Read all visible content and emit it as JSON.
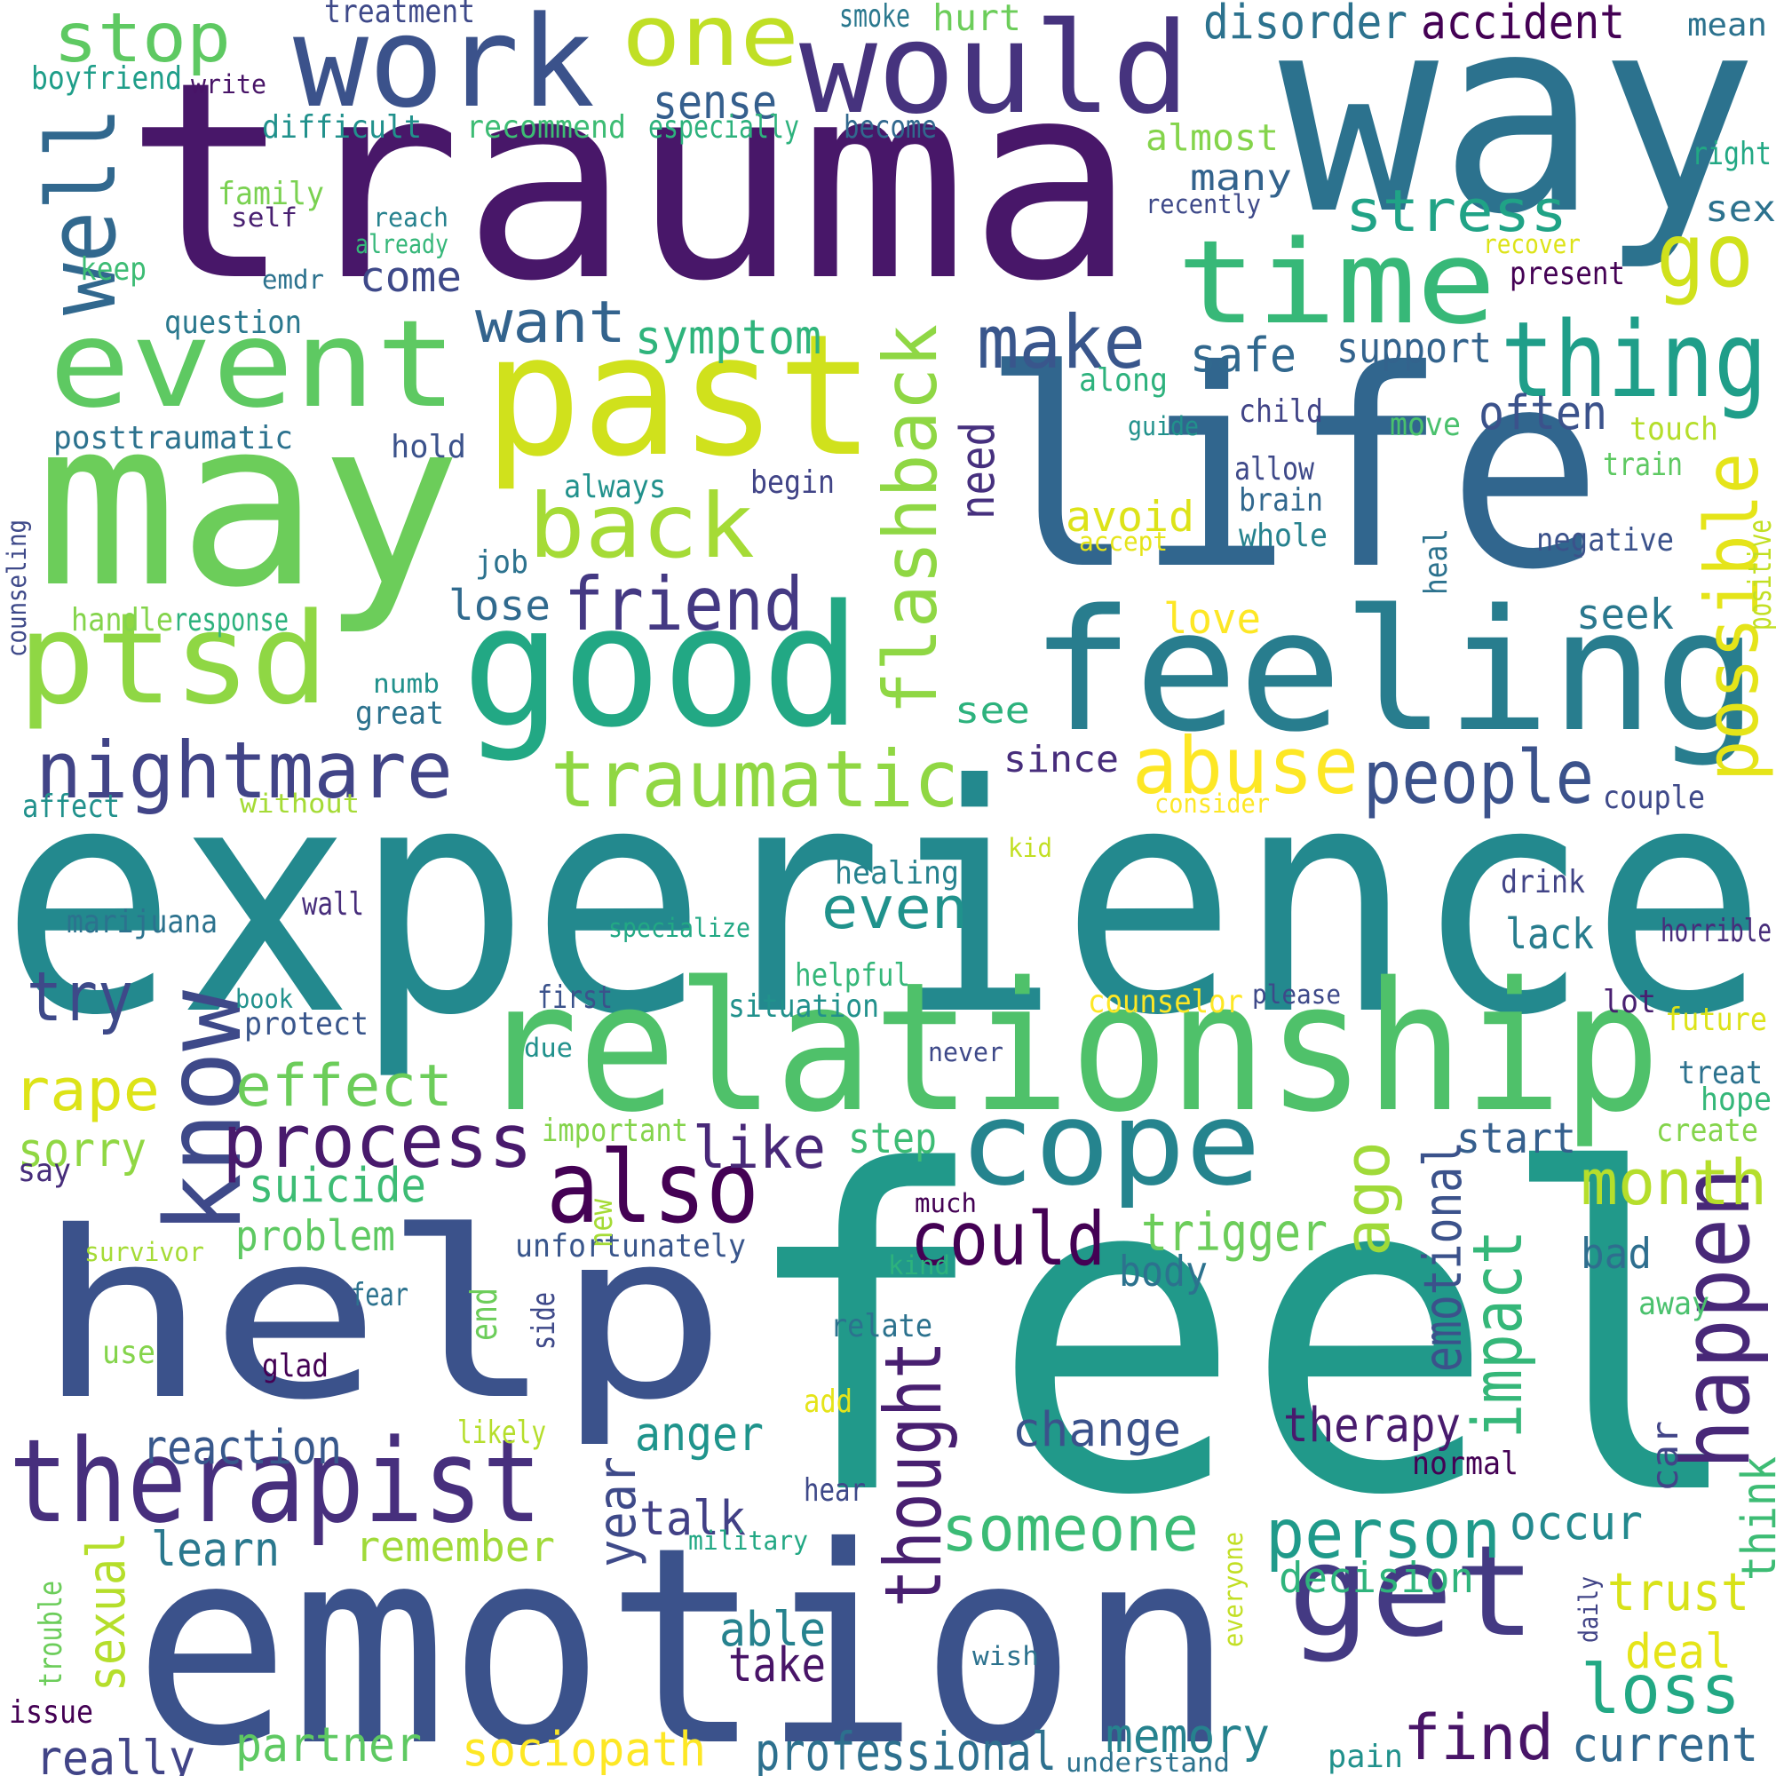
{
  "palette": [
    "#440154",
    "#3b528b",
    "#21918c",
    "#5ec962",
    "#fde725"
  ],
  "words": [
    {
      "text": "feel",
      "color": "#21998a"
    },
    {
      "text": "experience",
      "color": "#23898e"
    },
    {
      "text": "trauma",
      "color": "#481769"
    },
    {
      "text": "life",
      "color": "#31668e"
    },
    {
      "text": "way",
      "color": "#2c728e"
    },
    {
      "text": "emotion",
      "color": "#3b528b"
    },
    {
      "text": "help",
      "color": "#3b528b"
    },
    {
      "text": "may",
      "color": "#6ccd5a"
    },
    {
      "text": "relationship",
      "color": "#4fc16a"
    },
    {
      "text": "feeling",
      "color": "#287d8e"
    },
    {
      "text": "good",
      "color": "#22a884"
    },
    {
      "text": "past",
      "color": "#d0e11c"
    },
    {
      "text": "work",
      "color": "#3b528b"
    },
    {
      "text": "would",
      "color": "#46337e"
    },
    {
      "text": "time",
      "color": "#37b878"
    },
    {
      "text": "event",
      "color": "#5ec962"
    },
    {
      "text": "ptsd",
      "color": "#8fd744"
    },
    {
      "text": "therapist",
      "color": "#472f7d"
    },
    {
      "text": "get",
      "color": "#443a83"
    },
    {
      "text": "cope",
      "color": "#25848e"
    },
    {
      "text": "thing",
      "color": "#1f9e89"
    },
    {
      "text": "also",
      "color": "#440154"
    },
    {
      "text": "know",
      "color": "#3e4989"
    },
    {
      "text": "happen",
      "color": "#482878"
    },
    {
      "text": "one",
      "color": "#c0df25"
    },
    {
      "text": "nightmare",
      "color": "#414487"
    },
    {
      "text": "traumatic",
      "color": "#90d743"
    },
    {
      "text": "well",
      "color": "#31688e"
    },
    {
      "text": "back",
      "color": "#a5db36"
    },
    {
      "text": "abuse",
      "color": "#fde725"
    },
    {
      "text": "people",
      "color": "#3b528b"
    },
    {
      "text": "process",
      "color": "#481a6c"
    },
    {
      "text": "friend",
      "color": "#443983"
    },
    {
      "text": "make",
      "color": "#39568c"
    },
    {
      "text": "go",
      "color": "#d0e11c"
    },
    {
      "text": "flashback",
      "color": "#8fd744"
    },
    {
      "text": "could",
      "color": "#440154"
    },
    {
      "text": "thought",
      "color": "#481f70"
    },
    {
      "text": "find",
      "color": "#481467"
    },
    {
      "text": "loss",
      "color": "#22a884"
    },
    {
      "text": "person",
      "color": "#1f9a8a"
    },
    {
      "text": "someone",
      "color": "#3bbb75"
    },
    {
      "text": "month",
      "color": "#b5de2b"
    },
    {
      "text": "possible",
      "color": "#e5e419"
    },
    {
      "text": "stop",
      "color": "#5ec962"
    },
    {
      "text": "stress",
      "color": "#20a386"
    },
    {
      "text": "want",
      "color": "#33638d"
    },
    {
      "text": "effect",
      "color": "#6ccd5a"
    },
    {
      "text": "rape",
      "color": "#dde318"
    },
    {
      "text": "impact",
      "color": "#35b779"
    },
    {
      "text": "professional",
      "color": "#2d708e"
    },
    {
      "text": "try",
      "color": "#3e4989"
    },
    {
      "text": "even",
      "color": "#20928c"
    },
    {
      "text": "like",
      "color": "#482878"
    },
    {
      "text": "ago",
      "color": "#a0da39"
    },
    {
      "text": "symptom",
      "color": "#2fb47c"
    },
    {
      "text": "trigger",
      "color": "#6ccd5a"
    },
    {
      "text": "disorder",
      "color": "#2c728e"
    },
    {
      "text": "accident",
      "color": "#440154"
    },
    {
      "text": "sense",
      "color": "#355f8d"
    },
    {
      "text": "suicide",
      "color": "#3dbc74"
    },
    {
      "text": "emotional",
      "color": "#3b528b"
    },
    {
      "text": "trust",
      "color": "#d8e219"
    },
    {
      "text": "therapy",
      "color": "#481b6d"
    },
    {
      "text": "change",
      "color": "#3b528b"
    },
    {
      "text": "memory",
      "color": "#26828e"
    },
    {
      "text": "current",
      "color": "#31688e"
    },
    {
      "text": "sociopath",
      "color": "#fde725"
    },
    {
      "text": "partner",
      "color": "#5ec962"
    },
    {
      "text": "really",
      "color": "#414487"
    },
    {
      "text": "reaction",
      "color": "#38588c"
    },
    {
      "text": "talk",
      "color": "#424086"
    },
    {
      "text": "anger",
      "color": "#1f948c"
    },
    {
      "text": "remember",
      "color": "#a0da39"
    },
    {
      "text": "learn",
      "color": "#2a788e"
    },
    {
      "text": "sorry",
      "color": "#90d743"
    },
    {
      "text": "decision",
      "color": "#2fb47c"
    },
    {
      "text": "deal",
      "color": "#e5e419"
    },
    {
      "text": "able",
      "color": "#26828e"
    },
    {
      "text": "take",
      "color": "#481467"
    },
    {
      "text": "year",
      "color": "#3e4a89"
    },
    {
      "text": "sexual",
      "color": "#b5de2b"
    },
    {
      "text": "occur",
      "color": "#23898e"
    },
    {
      "text": "think",
      "color": "#3dbc74"
    },
    {
      "text": "safe",
      "color": "#31688e"
    },
    {
      "text": "support",
      "color": "#33638d"
    },
    {
      "text": "come",
      "color": "#3e4989"
    },
    {
      "text": "often",
      "color": "#3b528b"
    },
    {
      "text": "seek",
      "color": "#2a788e"
    },
    {
      "text": "lose",
      "color": "#306a8e"
    },
    {
      "text": "avoid",
      "color": "#dde318"
    },
    {
      "text": "love",
      "color": "#fde725"
    },
    {
      "text": "need",
      "color": "#46307e"
    },
    {
      "text": "see",
      "color": "#2db27d"
    },
    {
      "text": "since",
      "color": "#472d7b"
    },
    {
      "text": "problem",
      "color": "#5ec962"
    },
    {
      "text": "body",
      "color": "#2c728e"
    },
    {
      "text": "bad",
      "color": "#2e6e8e"
    },
    {
      "text": "start",
      "color": "#355f8d"
    },
    {
      "text": "step",
      "color": "#3dbc74"
    },
    {
      "text": "unfortunately",
      "color": "#39568c"
    },
    {
      "text": "many",
      "color": "#33638d"
    },
    {
      "text": "sex",
      "color": "#2c728e"
    },
    {
      "text": "almost",
      "color": "#84d44b"
    },
    {
      "text": "hurt",
      "color": "#6ccd5a"
    },
    {
      "text": "car",
      "color": "#414487"
    },
    {
      "text": "posttraumatic",
      "color": "#2c728e"
    },
    {
      "text": "boyfriend",
      "color": "#1f9e89"
    },
    {
      "text": "write",
      "color": "#481467"
    },
    {
      "text": "treatment",
      "color": "#3e4989"
    },
    {
      "text": "smoke",
      "color": "#2a788e"
    },
    {
      "text": "mean",
      "color": "#2c728e"
    },
    {
      "text": "difficult",
      "color": "#21918c"
    },
    {
      "text": "recommend",
      "color": "#3dbc74"
    },
    {
      "text": "especially",
      "color": "#2db27d"
    },
    {
      "text": "become",
      "color": "#31688e"
    },
    {
      "text": "right",
      "color": "#22a884"
    },
    {
      "text": "family",
      "color": "#7ad151"
    },
    {
      "text": "self",
      "color": "#481f70"
    },
    {
      "text": "reach",
      "color": "#26828e"
    },
    {
      "text": "already",
      "color": "#35b779"
    },
    {
      "text": "recently",
      "color": "#3e4989"
    },
    {
      "text": "recover",
      "color": "#dde318"
    },
    {
      "text": "keep",
      "color": "#3dbc74"
    },
    {
      "text": "emdr",
      "color": "#2c728e"
    },
    {
      "text": "present",
      "color": "#440154"
    },
    {
      "text": "question",
      "color": "#2a788e"
    },
    {
      "text": "along",
      "color": "#2db27d"
    },
    {
      "text": "hold",
      "color": "#3b528b"
    },
    {
      "text": "child",
      "color": "#414487"
    },
    {
      "text": "guide",
      "color": "#21918c"
    },
    {
      "text": "move",
      "color": "#4ac16d"
    },
    {
      "text": "touch",
      "color": "#b5de2b"
    },
    {
      "text": "allow",
      "color": "#3e4989"
    },
    {
      "text": "train",
      "color": "#5ec962"
    },
    {
      "text": "always",
      "color": "#21918c"
    },
    {
      "text": "begin",
      "color": "#414487"
    },
    {
      "text": "brain",
      "color": "#31688e"
    },
    {
      "text": "whole",
      "color": "#26828e"
    },
    {
      "text": "accept",
      "color": "#e5e419"
    },
    {
      "text": "negative",
      "color": "#3b528b"
    },
    {
      "text": "heal",
      "color": "#2c728e"
    },
    {
      "text": "positive",
      "color": "#c2df23"
    },
    {
      "text": "counseling",
      "color": "#3e4989"
    },
    {
      "text": "job",
      "color": "#2c728e"
    },
    {
      "text": "handle",
      "color": "#84d44b"
    },
    {
      "text": "response",
      "color": "#2db27d"
    },
    {
      "text": "numb",
      "color": "#21918c"
    },
    {
      "text": "great",
      "color": "#2c728e"
    },
    {
      "text": "affect",
      "color": "#21918c"
    },
    {
      "text": "without",
      "color": "#a5db36"
    },
    {
      "text": "consider",
      "color": "#fde725"
    },
    {
      "text": "couple",
      "color": "#3e4989"
    },
    {
      "text": "kid",
      "color": "#c2df23"
    },
    {
      "text": "healing",
      "color": "#26828e"
    },
    {
      "text": "drink",
      "color": "#414487"
    },
    {
      "text": "wall",
      "color": "#472d7b"
    },
    {
      "text": "marijuana",
      "color": "#2c728e"
    },
    {
      "text": "specialize",
      "color": "#22a884"
    },
    {
      "text": "lack",
      "color": "#287d8e"
    },
    {
      "text": "horrible",
      "color": "#472d7b"
    },
    {
      "text": "helpful",
      "color": "#35b779"
    },
    {
      "text": "book",
      "color": "#21918c"
    },
    {
      "text": "protect",
      "color": "#39568c"
    },
    {
      "text": "first",
      "color": "#3b528b"
    },
    {
      "text": "situation",
      "color": "#21918c"
    },
    {
      "text": "counselor",
      "color": "#fde725"
    },
    {
      "text": "please",
      "color": "#3e4989"
    },
    {
      "text": "lot",
      "color": "#481f70"
    },
    {
      "text": "future",
      "color": "#dde318"
    },
    {
      "text": "due",
      "color": "#21918c"
    },
    {
      "text": "never",
      "color": "#3e4989"
    },
    {
      "text": "treat",
      "color": "#2c728e"
    },
    {
      "text": "hope",
      "color": "#35b779"
    },
    {
      "text": "important",
      "color": "#84d44b"
    },
    {
      "text": "create",
      "color": "#84d44b"
    },
    {
      "text": "say",
      "color": "#472d7b"
    },
    {
      "text": "new",
      "color": "#a5db36"
    },
    {
      "text": "much",
      "color": "#440154"
    },
    {
      "text": "survivor",
      "color": "#a5db36"
    },
    {
      "text": "kind",
      "color": "#2db27d"
    },
    {
      "text": "fear",
      "color": "#2c728e"
    },
    {
      "text": "end",
      "color": "#6ccd5a"
    },
    {
      "text": "side",
      "color": "#3e4989"
    },
    {
      "text": "relate",
      "color": "#2c728e"
    },
    {
      "text": "away",
      "color": "#4ac16d"
    },
    {
      "text": "use",
      "color": "#84d44b"
    },
    {
      "text": "glad",
      "color": "#440154"
    },
    {
      "text": "add",
      "color": "#e5e419"
    },
    {
      "text": "likely",
      "color": "#b5de2b"
    },
    {
      "text": "normal",
      "color": "#440154"
    },
    {
      "text": "hear",
      "color": "#3e4989"
    },
    {
      "text": "military",
      "color": "#22a884"
    },
    {
      "text": "everyone",
      "color": "#c2df23"
    },
    {
      "text": "daily",
      "color": "#414487"
    },
    {
      "text": "wish",
      "color": "#2c728e"
    },
    {
      "text": "trouble",
      "color": "#6ccd5a"
    },
    {
      "text": "issue",
      "color": "#440154"
    },
    {
      "text": "pain",
      "color": "#21918c"
    },
    {
      "text": "understand",
      "color": "#2c728e"
    }
  ]
}
